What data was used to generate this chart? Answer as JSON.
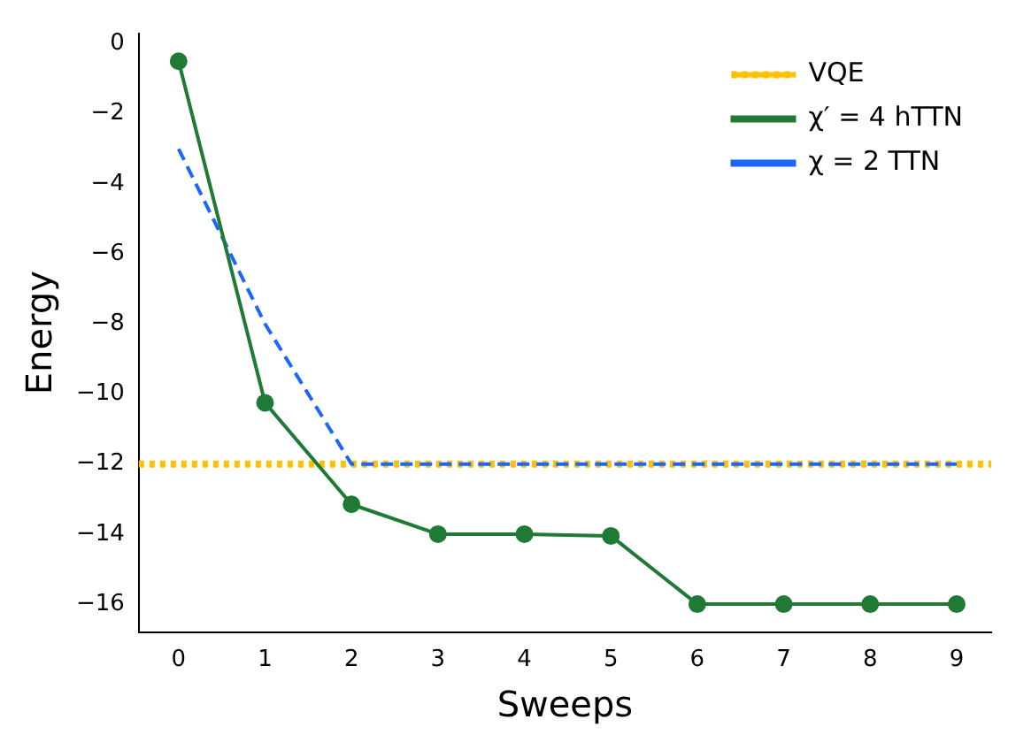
{
  "chart_data": {
    "type": "line",
    "xlabel": "Sweeps",
    "ylabel": "Energy",
    "x": [
      0,
      1,
      2,
      3,
      4,
      5,
      6,
      7,
      8,
      9
    ],
    "series": [
      {
        "name": "χ′ = 4 hTTN",
        "color": "#1f7a36",
        "marker": "circle",
        "line_style": "solid",
        "values": [
          -0.5,
          -10.25,
          -13.15,
          -14,
          -14,
          -14.05,
          -16,
          -16,
          -16,
          -16
        ]
      },
      {
        "name": "χ = 2 TTN",
        "color": "#1a66ff",
        "marker": "none",
        "line_style": "dashed",
        "values": [
          -3,
          -8,
          -12,
          -12,
          -12,
          -12,
          -12,
          -12,
          -12,
          -12
        ]
      }
    ],
    "ref_lines": [
      {
        "axis": "y",
        "value": -12,
        "label": "VQE",
        "color": "#ffc000",
        "line_style": "dotted"
      }
    ],
    "xlim": [
      -0.46,
      9.4
    ],
    "xticks": [
      0,
      1,
      2,
      3,
      4,
      5,
      6,
      7,
      8,
      9
    ],
    "ylim": [
      -16.8,
      0.3
    ],
    "yticks": [
      -16,
      -14,
      -12,
      -10,
      -8,
      -6,
      -4,
      -2,
      0
    ],
    "grid": false,
    "legend": "top right"
  }
}
